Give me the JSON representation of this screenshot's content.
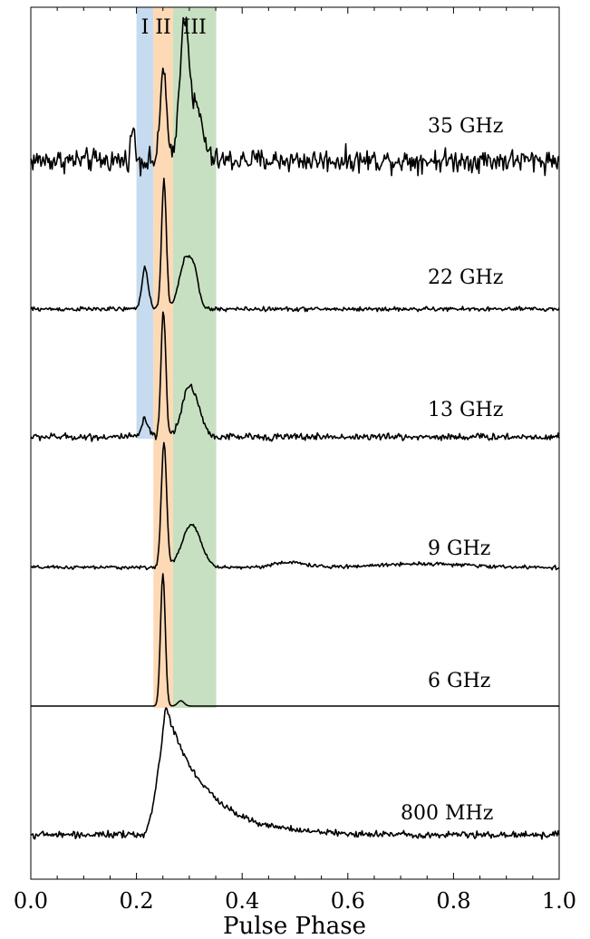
{
  "chart_data": {
    "type": "line",
    "title": "",
    "xlabel": "Pulse Phase",
    "ylabel": "",
    "xlim": [
      0.0,
      1.0
    ],
    "xticks": [
      {
        "value": 0.0,
        "label": "0.0"
      },
      {
        "value": 0.2,
        "label": "0.2"
      },
      {
        "value": 0.4,
        "label": "0.4"
      },
      {
        "value": 0.6,
        "label": "0.6"
      },
      {
        "value": 0.8,
        "label": "0.8"
      },
      {
        "value": 1.0,
        "label": "1.0"
      }
    ],
    "grid": false,
    "legend": "none",
    "regions": [
      {
        "label": "I",
        "x0": 0.2,
        "x1": 0.232,
        "color": "#c6dbef",
        "covers": [
          "35 GHz",
          "22 GHz",
          "13 GHz"
        ]
      },
      {
        "label": "II",
        "x0": 0.232,
        "x1": 0.269,
        "color": "#fdd9b5",
        "covers": [
          "35 GHz",
          "22 GHz",
          "13 GHz",
          "9 GHz",
          "6 GHz"
        ]
      },
      {
        "label": "III",
        "x0": 0.269,
        "x1": 0.351,
        "color": "#c7e0c1",
        "covers": [
          "35 GHz",
          "22 GHz",
          "13 GHz",
          "9 GHz",
          "6 GHz"
        ]
      }
    ],
    "series": [
      {
        "label": "35 GHz",
        "noise": 0.07,
        "baseline": 0.0,
        "components": [
          {
            "center": 0.193,
            "width": 0.004,
            "amp": 0.27
          },
          {
            "center": 0.251,
            "width": 0.0055,
            "amp": 0.82
          },
          {
            "center": 0.286,
            "width": 0.007,
            "amp": 0.84
          },
          {
            "center": 0.296,
            "width": 0.006,
            "amp": 0.68
          },
          {
            "center": 0.313,
            "width": 0.012,
            "amp": 0.45
          }
        ]
      },
      {
        "label": "22 GHz",
        "noise": 0.012,
        "baseline": 0.0,
        "components": [
          {
            "center": 0.216,
            "width": 0.006,
            "amp": 0.32
          },
          {
            "center": 0.252,
            "width": 0.0045,
            "amp": 1.0
          },
          {
            "center": 0.293,
            "width": 0.012,
            "amp": 0.38
          },
          {
            "center": 0.31,
            "width": 0.008,
            "amp": 0.2
          }
        ]
      },
      {
        "label": "13 GHz",
        "noise": 0.02,
        "baseline": 0.0,
        "components": [
          {
            "center": 0.216,
            "width": 0.006,
            "amp": 0.14
          },
          {
            "center": 0.251,
            "width": 0.0045,
            "amp": 1.0
          },
          {
            "center": 0.297,
            "width": 0.013,
            "amp": 0.34
          },
          {
            "center": 0.315,
            "width": 0.012,
            "amp": 0.16
          }
        ]
      },
      {
        "label": "9 GHz",
        "noise": 0.01,
        "baseline": 0.0,
        "components": [
          {
            "center": 0.252,
            "width": 0.005,
            "amp": 1.0
          },
          {
            "center": 0.3,
            "width": 0.016,
            "amp": 0.26
          },
          {
            "center": 0.315,
            "width": 0.015,
            "amp": 0.12
          },
          {
            "center": 0.49,
            "width": 0.03,
            "amp": 0.04
          },
          {
            "center": 0.74,
            "width": 0.08,
            "amp": 0.03
          }
        ]
      },
      {
        "label": "6 GHz",
        "noise": 0.0,
        "baseline": 0.0,
        "components": [
          {
            "center": 0.25,
            "width": 0.0045,
            "amp": 1.0
          },
          {
            "center": 0.284,
            "width": 0.006,
            "amp": 0.04
          }
        ]
      },
      {
        "label": "800 MHz",
        "noise": 0.018,
        "baseline": 0.0,
        "scattered": {
          "onset": 0.215,
          "rise": 0.012,
          "peak_at": 0.255,
          "tau": 0.075,
          "amp": 1.0
        }
      }
    ]
  }
}
